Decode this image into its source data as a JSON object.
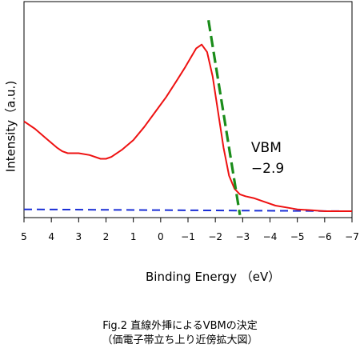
{
  "chart_data": {
    "type": "line",
    "ylabel": "Intensity（a.u.)",
    "xlabel": "Binding Energy （eV）",
    "xlim": [
      5,
      -7
    ],
    "ylim": [
      0,
      1
    ],
    "x_ticks": [
      5,
      4,
      3,
      2,
      1,
      0,
      -1,
      -2,
      -3,
      -4,
      -5,
      -6,
      -7
    ],
    "x_tick_labels": [
      "5",
      "4",
      "3",
      "2",
      "1",
      "0",
      "−1",
      "−2",
      "−3",
      "−4",
      "−5",
      "−6",
      "−7"
    ],
    "series": [
      {
        "name": "",
        "color": "#ee1111",
        "style": "solid",
        "x": [
          5.0,
          4.6,
          4.2,
          3.8,
          3.6,
          3.4,
          3.0,
          2.6,
          2.2,
          2.0,
          1.8,
          1.4,
          1.0,
          0.6,
          0.2,
          -0.2,
          -0.6,
          -0.9,
          -1.1,
          -1.3,
          -1.5,
          -1.7,
          -1.9,
          -2.1,
          -2.3,
          -2.5,
          -2.7,
          -2.9,
          -3.1,
          -3.4,
          -3.8,
          -4.2,
          -4.6,
          -5.0,
          -5.5,
          -6.0,
          -7.0
        ],
        "y": [
          0.48,
          0.44,
          0.39,
          0.34,
          0.32,
          0.31,
          0.31,
          0.3,
          0.28,
          0.28,
          0.29,
          0.33,
          0.38,
          0.45,
          0.53,
          0.61,
          0.7,
          0.77,
          0.82,
          0.87,
          0.89,
          0.85,
          0.72,
          0.53,
          0.34,
          0.19,
          0.12,
          0.09,
          0.08,
          0.07,
          0.05,
          0.03,
          0.02,
          0.01,
          0.005,
          0.0,
          0.0
        ]
      },
      {
        "name": "",
        "color": "#1a8c1a",
        "style": "dashed",
        "x": [
          -1.75,
          -2.9
        ],
        "y": [
          1.02,
          -0.02
        ]
      },
      {
        "name": "",
        "color": "#1a2fd6",
        "style": "dashed",
        "x": [
          5.0,
          -7.0
        ],
        "y": [
          0.01,
          0.0
        ]
      }
    ],
    "annotations": [
      {
        "text": "VBM",
        "x": -2.9,
        "y": 0.33
      },
      {
        "text": "−2.9",
        "x": -2.9,
        "y": 0.22
      }
    ],
    "grid": false,
    "legend": "none"
  },
  "caption": {
    "line1": "Fig.2  直線外挿によるVBMの決定",
    "line2": "（価電子帯立ち上り近傍拡大図）"
  }
}
